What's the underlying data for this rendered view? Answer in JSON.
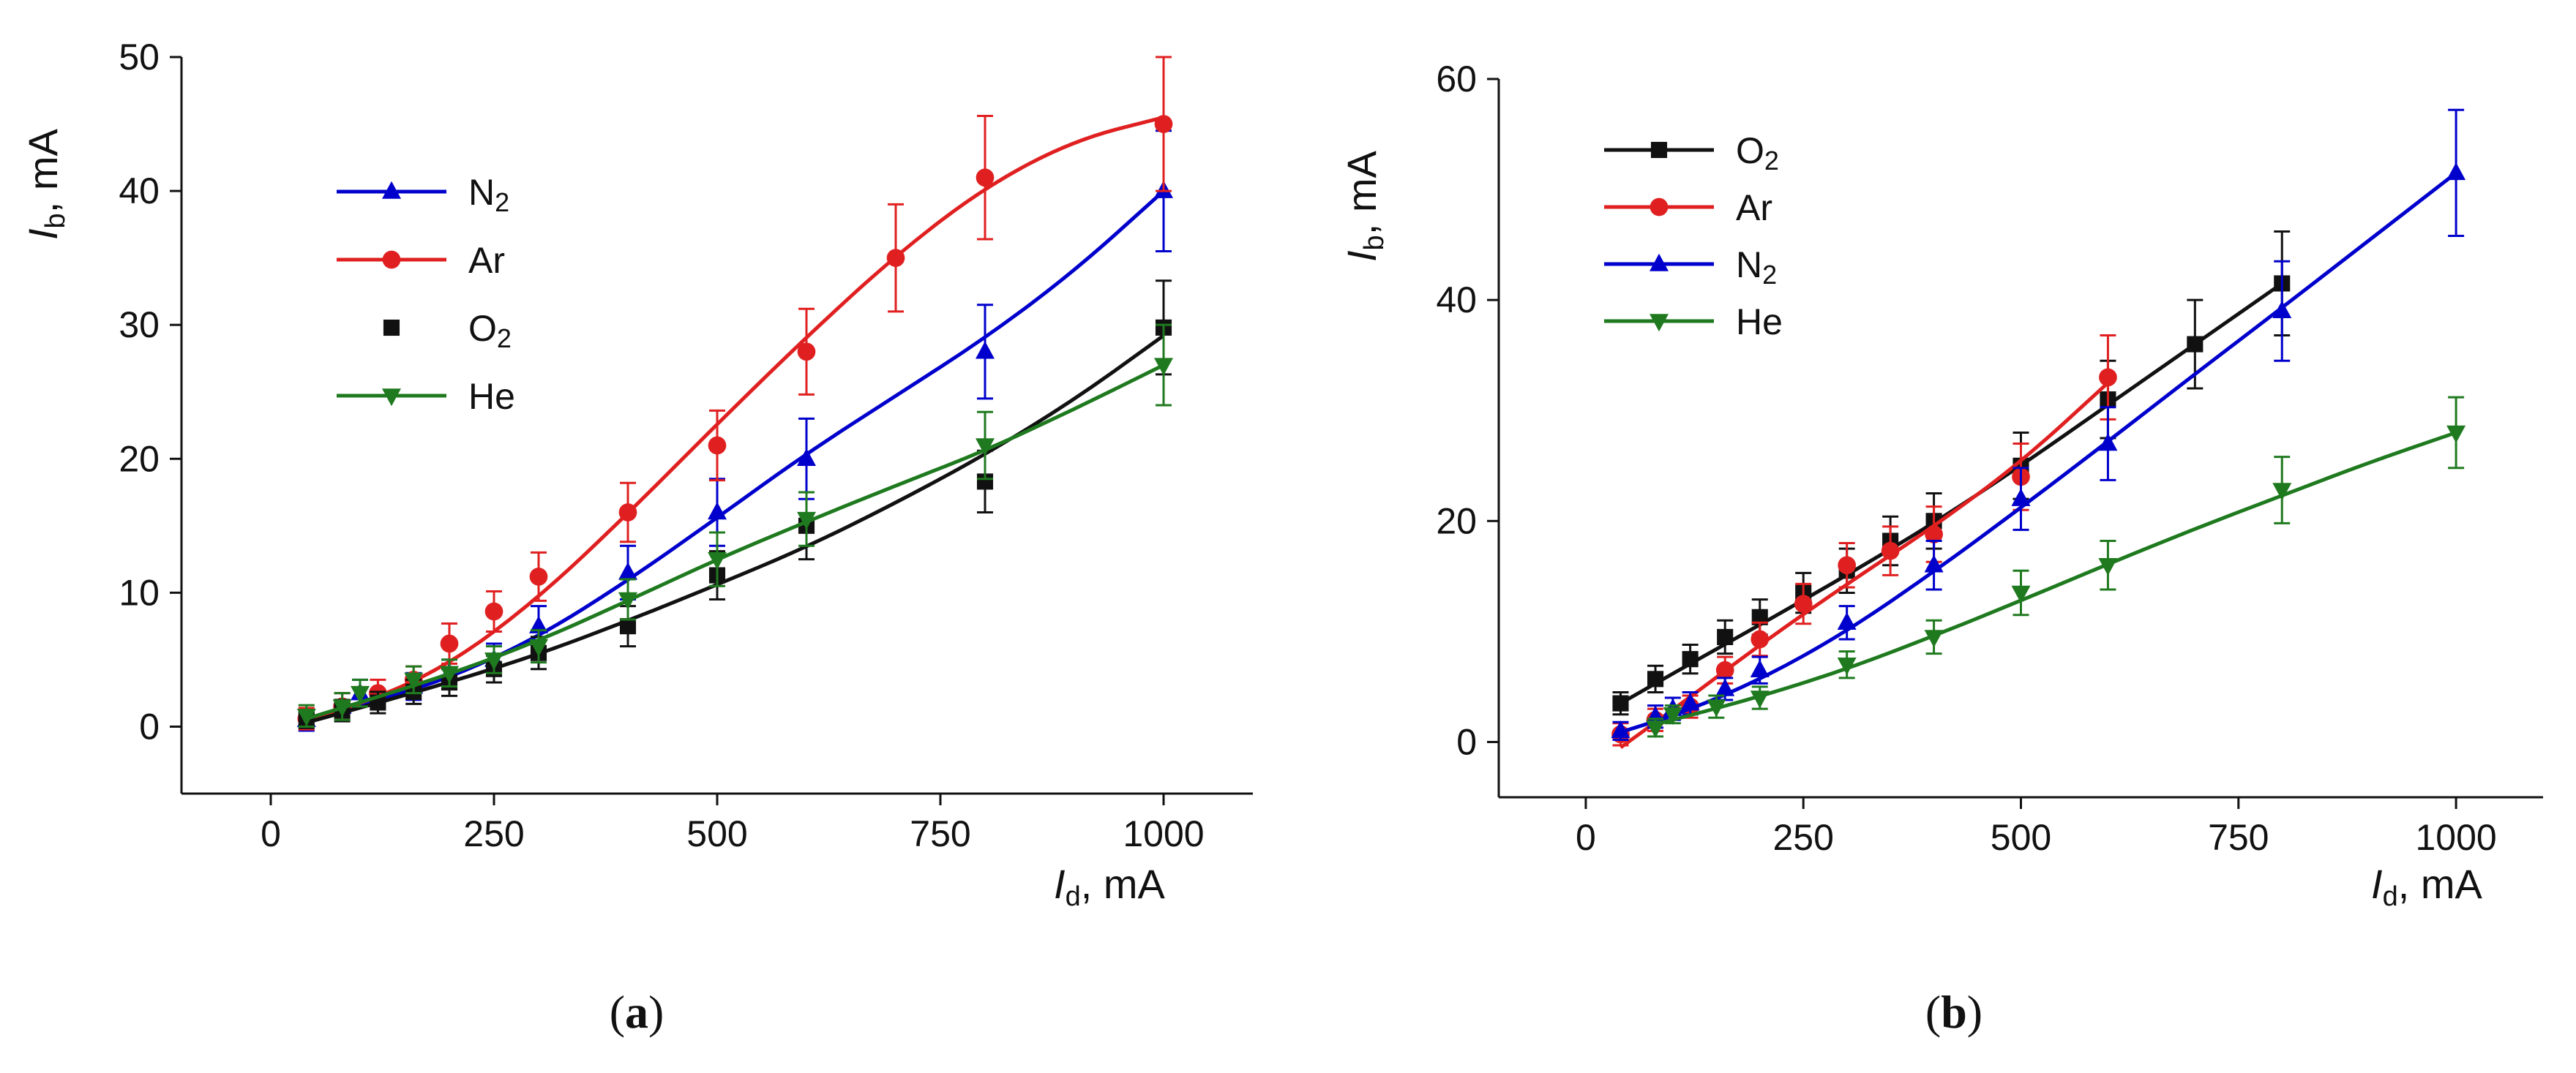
{
  "chart_data": [
    {
      "type": "scatter",
      "panel": "a",
      "caption": {
        "open": "(",
        "letter": "a",
        "close": ")"
      },
      "xlabel": {
        "sym": "I",
        "sub": "d",
        "unit": ", mA"
      },
      "ylabel": {
        "sym": "I",
        "sub": "b",
        "unit": ", mA"
      },
      "xlim": [
        -100,
        1100
      ],
      "ylim": [
        -5,
        50
      ],
      "xticks": [
        0,
        250,
        500,
        750,
        1000
      ],
      "yticks": [
        0,
        10,
        20,
        30,
        40,
        50
      ],
      "legend": [
        {
          "base": "N",
          "sub": "2",
          "color": "#0000cc",
          "marker": "triangle",
          "line": true
        },
        {
          "base": "Ar",
          "sub": "",
          "color": "#e02020",
          "marker": "circle",
          "line": true
        },
        {
          "base": "O",
          "sub": "2",
          "color": "#111111",
          "marker": "square",
          "line": false
        },
        {
          "base": "He",
          "sub": "",
          "color": "#1f7a1f",
          "marker": "triangle-down",
          "line": true
        }
      ],
      "series": [
        {
          "name": "N2",
          "color": "#0000cc",
          "marker": "triangle",
          "x": [
            40,
            80,
            100,
            160,
            200,
            250,
            300,
            400,
            500,
            600,
            800,
            1000
          ],
          "y": [
            0.5,
            1.5,
            2.5,
            3.0,
            4.0,
            5.0,
            7.5,
            11.5,
            16.0,
            20.0,
            28.0,
            40.0
          ],
          "err": [
            0.8,
            1.0,
            1.0,
            1.0,
            1.0,
            1.2,
            1.5,
            2.0,
            2.5,
            3.0,
            3.5,
            4.5
          ],
          "fit": [
            [
              40,
              0.5
            ],
            [
              100,
              1.6
            ],
            [
              200,
              3.6
            ],
            [
              300,
              6.7
            ],
            [
              400,
              10.9
            ],
            [
              500,
              15.6
            ],
            [
              600,
              20.4
            ],
            [
              700,
              24.7
            ],
            [
              800,
              29.0
            ],
            [
              900,
              34.0
            ],
            [
              1000,
              40.0
            ]
          ]
        },
        {
          "name": "Ar",
          "color": "#e02020",
          "marker": "circle",
          "x": [
            40,
            80,
            120,
            160,
            200,
            250,
            300,
            400,
            500,
            600,
            700,
            800,
            1000
          ],
          "y": [
            0.6,
            1.5,
            2.5,
            3.5,
            6.2,
            8.6,
            11.2,
            16.0,
            21.0,
            28.0,
            35.0,
            41.0,
            45.0
          ],
          "err": [
            0.8,
            1.0,
            1.0,
            1.0,
            1.5,
            1.5,
            1.8,
            2.2,
            2.6,
            3.2,
            4.0,
            4.6,
            5.0
          ],
          "fit": [
            [
              40,
              0.5
            ],
            [
              100,
              1.6
            ],
            [
              200,
              4.6
            ],
            [
              300,
              9.6
            ],
            [
              400,
              15.9
            ],
            [
              500,
              22.6
            ],
            [
              600,
              29.1
            ],
            [
              700,
              35.2
            ],
            [
              800,
              40.3
            ],
            [
              900,
              43.8
            ],
            [
              1000,
              45.5
            ]
          ]
        },
        {
          "name": "O2",
          "color": "#111111",
          "marker": "square",
          "x": [
            40,
            80,
            120,
            160,
            200,
            250,
            300,
            400,
            500,
            600,
            800,
            1000
          ],
          "y": [
            0.5,
            1.2,
            1.8,
            2.6,
            3.3,
            4.3,
            5.5,
            7.5,
            11.3,
            15.0,
            18.3,
            29.8
          ],
          "err": [
            0.6,
            0.8,
            0.8,
            0.9,
            1.0,
            1.0,
            1.2,
            1.5,
            1.8,
            2.5,
            2.3,
            3.5
          ],
          "fit": [
            [
              40,
              0.3
            ],
            [
              100,
              1.4
            ],
            [
              200,
              3.3
            ],
            [
              300,
              5.4
            ],
            [
              400,
              7.9
            ],
            [
              500,
              10.6
            ],
            [
              600,
              13.4
            ],
            [
              700,
              16.7
            ],
            [
              800,
              20.3
            ],
            [
              900,
              24.4
            ],
            [
              1000,
              29.2
            ]
          ]
        },
        {
          "name": "He",
          "color": "#1f7a1f",
          "marker": "triangle-down",
          "x": [
            40,
            80,
            100,
            160,
            200,
            250,
            300,
            400,
            500,
            600,
            800,
            1000
          ],
          "y": [
            0.8,
            1.5,
            2.5,
            3.5,
            4.0,
            5.0,
            6.0,
            9.5,
            12.5,
            15.5,
            21.0,
            27.0
          ],
          "err": [
            0.8,
            1.0,
            1.0,
            1.0,
            1.0,
            1.0,
            1.2,
            1.5,
            2.0,
            2.0,
            2.5,
            3.0
          ],
          "fit": [
            [
              40,
              0.6
            ],
            [
              100,
              1.8
            ],
            [
              200,
              3.9
            ],
            [
              300,
              6.4
            ],
            [
              400,
              9.4
            ],
            [
              500,
              12.5
            ],
            [
              600,
              15.3
            ],
            [
              700,
              18.0
            ],
            [
              800,
              20.6
            ],
            [
              900,
              23.7
            ],
            [
              1000,
              27.0
            ]
          ]
        }
      ]
    },
    {
      "type": "scatter",
      "panel": "b",
      "caption": {
        "open": "(",
        "letter": "b",
        "close": ")"
      },
      "xlabel": {
        "sym": "I",
        "sub": "d",
        "unit": ", mA"
      },
      "ylabel": {
        "sym": "I",
        "sub": "b",
        "unit": ", mA"
      },
      "xlim": [
        -100,
        1100
      ],
      "ylim": [
        -5,
        60
      ],
      "xticks": [
        0,
        250,
        500,
        750,
        1000
      ],
      "yticks": [
        0,
        20,
        40,
        60
      ],
      "legend": [
        {
          "base": "O",
          "sub": "2",
          "color": "#111111",
          "marker": "square",
          "line": true
        },
        {
          "base": "Ar",
          "sub": "",
          "color": "#e02020",
          "marker": "circle",
          "line": true
        },
        {
          "base": "N",
          "sub": "2",
          "color": "#0000cc",
          "marker": "triangle",
          "line": true
        },
        {
          "base": "He",
          "sub": "",
          "color": "#1f7a1f",
          "marker": "triangle-down",
          "line": true
        }
      ],
      "series": [
        {
          "name": "O2",
          "color": "#111111",
          "marker": "square",
          "x": [
            40,
            80,
            120,
            160,
            200,
            250,
            300,
            350,
            400,
            500,
            600,
            700,
            800
          ],
          "y": [
            3.5,
            5.7,
            7.5,
            9.5,
            11.3,
            13.5,
            15.5,
            18.2,
            20.0,
            25.0,
            31.0,
            36.0,
            41.5
          ],
          "err": [
            1.0,
            1.2,
            1.3,
            1.5,
            1.6,
            1.8,
            2.0,
            2.2,
            2.5,
            3.0,
            3.5,
            4.0,
            4.7
          ],
          "fit": [
            [
              40,
              3.5
            ],
            [
              100,
              6.2
            ],
            [
              200,
              10.6
            ],
            [
              300,
              15.1
            ],
            [
              400,
              19.8
            ],
            [
              500,
              25.0
            ],
            [
              600,
              30.5
            ],
            [
              700,
              36.0
            ],
            [
              800,
              41.5
            ]
          ]
        },
        {
          "name": "Ar",
          "color": "#e02020",
          "marker": "circle",
          "x": [
            40,
            80,
            120,
            160,
            200,
            250,
            300,
            350,
            400,
            500,
            600
          ],
          "y": [
            0.7,
            2.0,
            3.2,
            6.5,
            9.3,
            12.5,
            16.0,
            17.3,
            18.8,
            24.0,
            33.0
          ],
          "err": [
            1.0,
            1.0,
            1.0,
            1.2,
            1.5,
            1.8,
            2.0,
            2.2,
            2.5,
            3.0,
            3.8
          ],
          "fit": [
            [
              40,
              -0.5
            ],
            [
              100,
              2.9
            ],
            [
              200,
              8.8
            ],
            [
              300,
              14.3
            ],
            [
              400,
              19.5
            ],
            [
              500,
              25.3
            ],
            [
              600,
              32.5
            ]
          ]
        },
        {
          "name": "N2",
          "color": "#0000cc",
          "marker": "triangle",
          "x": [
            40,
            80,
            100,
            120,
            160,
            200,
            300,
            400,
            500,
            600,
            800,
            1000
          ],
          "y": [
            1.0,
            2.3,
            3.0,
            3.5,
            4.8,
            6.5,
            10.8,
            16.0,
            22.0,
            27.0,
            39.0,
            51.5
          ],
          "err": [
            0.8,
            1.0,
            1.0,
            1.0,
            1.0,
            1.2,
            1.5,
            2.2,
            2.8,
            3.3,
            4.5,
            5.7
          ],
          "fit": [
            [
              40,
              0.9
            ],
            [
              100,
              2.3
            ],
            [
              200,
              5.6
            ],
            [
              300,
              10.0
            ],
            [
              400,
              15.4
            ],
            [
              500,
              21.2
            ],
            [
              600,
              27.2
            ],
            [
              700,
              33.3
            ],
            [
              800,
              39.3
            ],
            [
              900,
              45.4
            ],
            [
              1000,
              51.5
            ]
          ]
        },
        {
          "name": "He",
          "color": "#1f7a1f",
          "marker": "triangle-down",
          "x": [
            80,
            100,
            150,
            200,
            300,
            400,
            500,
            600,
            800,
            1000
          ],
          "y": [
            1.3,
            2.5,
            3.2,
            4.0,
            7.0,
            9.5,
            13.5,
            16.0,
            22.8,
            28.0
          ],
          "err": [
            0.8,
            0.8,
            1.0,
            1.0,
            1.2,
            1.5,
            2.0,
            2.2,
            3.0,
            3.2
          ],
          "fit": [
            [
              80,
              1.6
            ],
            [
              100,
              2.0
            ],
            [
              200,
              4.1
            ],
            [
              300,
              6.6
            ],
            [
              400,
              9.6
            ],
            [
              500,
              12.8
            ],
            [
              600,
              16.1
            ],
            [
              700,
              19.3
            ],
            [
              800,
              22.3
            ],
            [
              900,
              25.3
            ],
            [
              1000,
              28.0
            ]
          ]
        }
      ]
    }
  ]
}
